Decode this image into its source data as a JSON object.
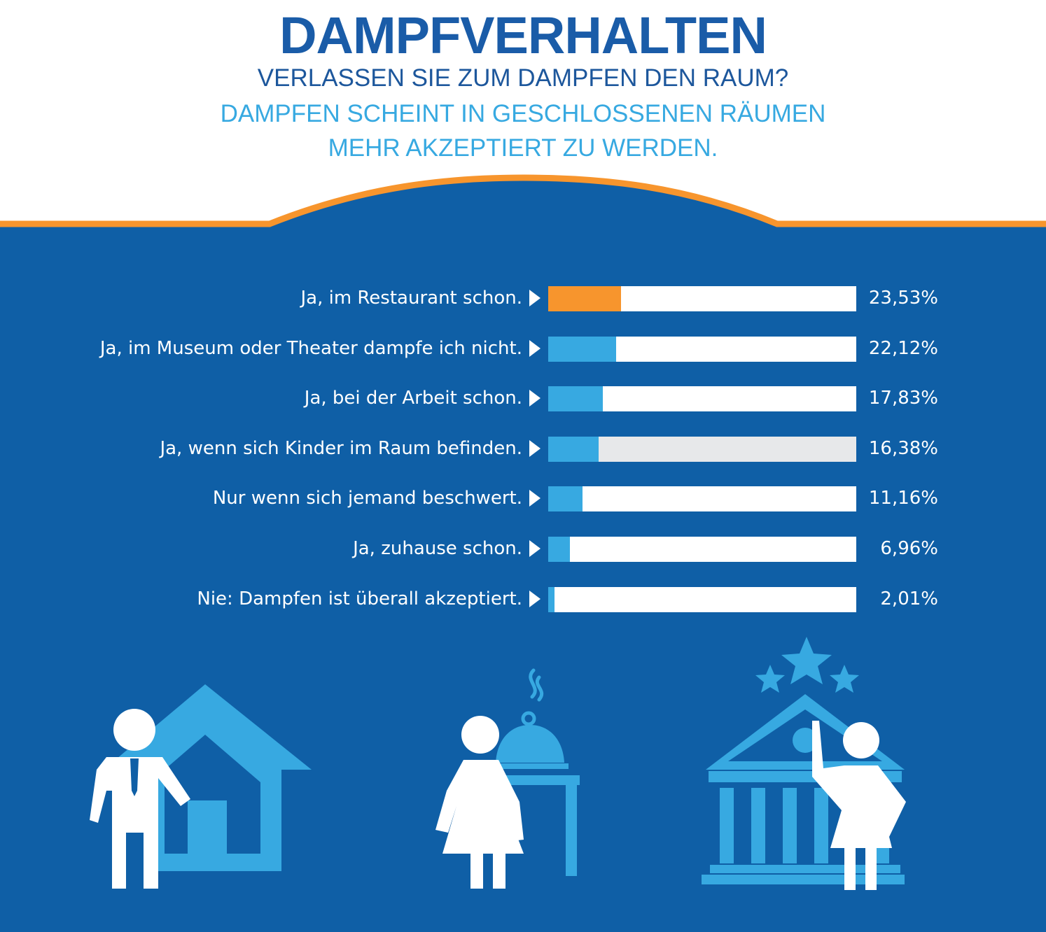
{
  "header": {
    "title": "DAMPFVERHALTEN",
    "question": "VERLASSEN SIE ZUM DAMPFEN DEN RAUM?",
    "lead_line1": "DAMPFEN SCHEINT IN GESCHLOSSENEN RÄUMEN",
    "lead_line2": "MEHR AKZEPTIERT ZU WERDEN."
  },
  "colors": {
    "background": "#0f5fa6",
    "accent_orange": "#f7952d",
    "bar_blue": "#37a9e1",
    "icon_blue": "#37a9e1",
    "track_white": "#ffffff",
    "track_grey": "#e7e8ea"
  },
  "chart_data": {
    "type": "bar",
    "orientation": "horizontal",
    "title": "VERLASSEN SIE ZUM DAMPFEN DEN RAUM?",
    "unit": "%",
    "xlim": [
      0,
      100
    ],
    "categories": [
      "Ja, im Restaurant schon.",
      "Ja, im Museum oder Theater dampfe ich nicht.",
      "Ja, bei der Arbeit schon.",
      "Ja, wenn sich Kinder im Raum befinden.",
      "Nur wenn sich jemand beschwert.",
      "Ja, zuhause schon.",
      "Nie: Dampfen ist überall akzeptiert."
    ],
    "values": [
      23.53,
      22.12,
      17.83,
      16.38,
      11.16,
      6.96,
      2.01
    ],
    "value_labels": [
      "23,53%",
      "22,12%",
      "17,83%",
      "16,38%",
      "11,16%",
      "6,96%",
      "2,01%"
    ],
    "highlight_index": 0,
    "grey_track_index": 3
  },
  "icons": [
    "house-man-icon",
    "restaurant-woman-icon",
    "museum-woman-icon"
  ]
}
